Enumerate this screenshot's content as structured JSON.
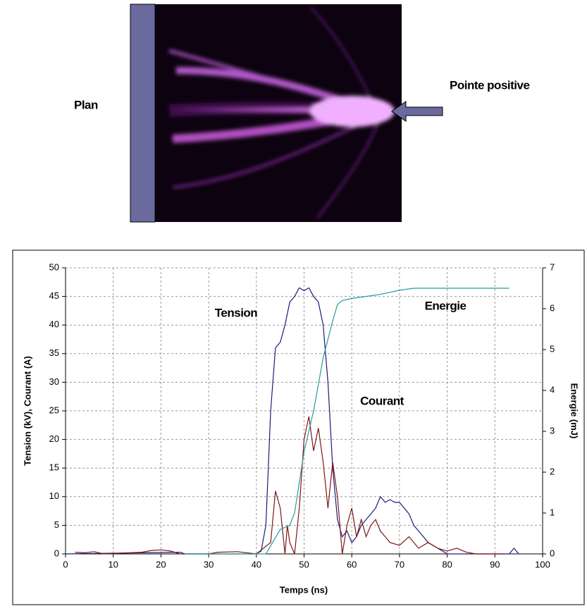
{
  "photo": {
    "plane_label": "Plan",
    "tip_label": "Pointe positive"
  },
  "chart_data": {
    "type": "line",
    "xlabel": "Temps (ns)",
    "ylabel": "Tension (kV), Courant (A)",
    "y2label": "Energie (mJ)",
    "xlim": [
      0,
      100
    ],
    "xticks": [
      0,
      10,
      20,
      30,
      40,
      50,
      60,
      70,
      80,
      90,
      100
    ],
    "ylim": [
      0,
      50
    ],
    "yticks": [
      0,
      5,
      10,
      15,
      20,
      25,
      30,
      35,
      40,
      45,
      50
    ],
    "y2lim": [
      0,
      7
    ],
    "y2ticks": [
      0,
      1,
      2,
      3,
      4,
      5,
      6,
      7
    ],
    "grid": true,
    "series": [
      {
        "name": "Tension",
        "color": "#1c1c7a",
        "x": [
          0,
          24,
          25,
          40,
          41,
          42,
          43,
          44,
          45,
          46,
          47,
          48,
          49,
          50,
          51,
          52,
          53,
          54,
          55,
          56,
          57,
          58,
          59,
          60,
          61,
          62,
          63,
          64,
          65,
          66,
          67,
          68,
          69,
          70,
          71,
          72,
          73,
          74,
          75,
          76,
          77,
          78,
          79,
          80,
          93,
          94,
          95
        ],
        "values": [
          0,
          0.3,
          0,
          0,
          0.5,
          5,
          25,
          36,
          37,
          40,
          44,
          45,
          46.5,
          46,
          46.5,
          45,
          44,
          40,
          30,
          15,
          6,
          3,
          4,
          2,
          3,
          5,
          6,
          7,
          8,
          10,
          9,
          9.5,
          9,
          9,
          8,
          7,
          5,
          4,
          3,
          2,
          1.5,
          1,
          0.5,
          0,
          0,
          1,
          0
        ]
      },
      {
        "name": "Courant",
        "color": "#7f1515",
        "x": [
          2,
          4,
          6,
          8,
          16,
          18,
          20,
          22,
          24,
          30,
          32,
          36,
          40,
          43,
          44,
          45,
          46,
          46.5,
          47,
          48,
          49,
          50,
          51,
          52,
          53,
          54,
          55,
          56,
          57,
          58,
          59,
          60,
          61,
          62,
          63,
          64,
          65,
          66,
          67,
          68,
          70,
          72,
          74,
          76,
          78,
          80,
          82,
          84,
          86,
          92
        ],
        "values": [
          0.3,
          0.2,
          0.4,
          0,
          0.3,
          0.6,
          0.7,
          0.5,
          0,
          0,
          0.3,
          0.4,
          0,
          2,
          11,
          8,
          0,
          5,
          2,
          0,
          8,
          20,
          24,
          18,
          22,
          16,
          8,
          16,
          10,
          0,
          5,
          8,
          3,
          6,
          3,
          5,
          6,
          4,
          3,
          2,
          1.5,
          3,
          1,
          2,
          1,
          0.5,
          1,
          0.3,
          0,
          0
        ]
      },
      {
        "name": "Energie",
        "color": "#2a9a9a",
        "axis": "y2",
        "x": [
          25,
          42,
          43,
          45,
          47,
          48,
          50,
          52,
          54,
          56,
          57,
          58,
          60,
          63,
          66,
          70,
          73,
          75,
          93
        ],
        "values": [
          0,
          0,
          0.2,
          0.6,
          0.7,
          1.0,
          2.5,
          3.5,
          4.8,
          5.7,
          6.1,
          6.2,
          6.25,
          6.3,
          6.35,
          6.45,
          6.5,
          6.5,
          6.5
        ]
      }
    ]
  }
}
